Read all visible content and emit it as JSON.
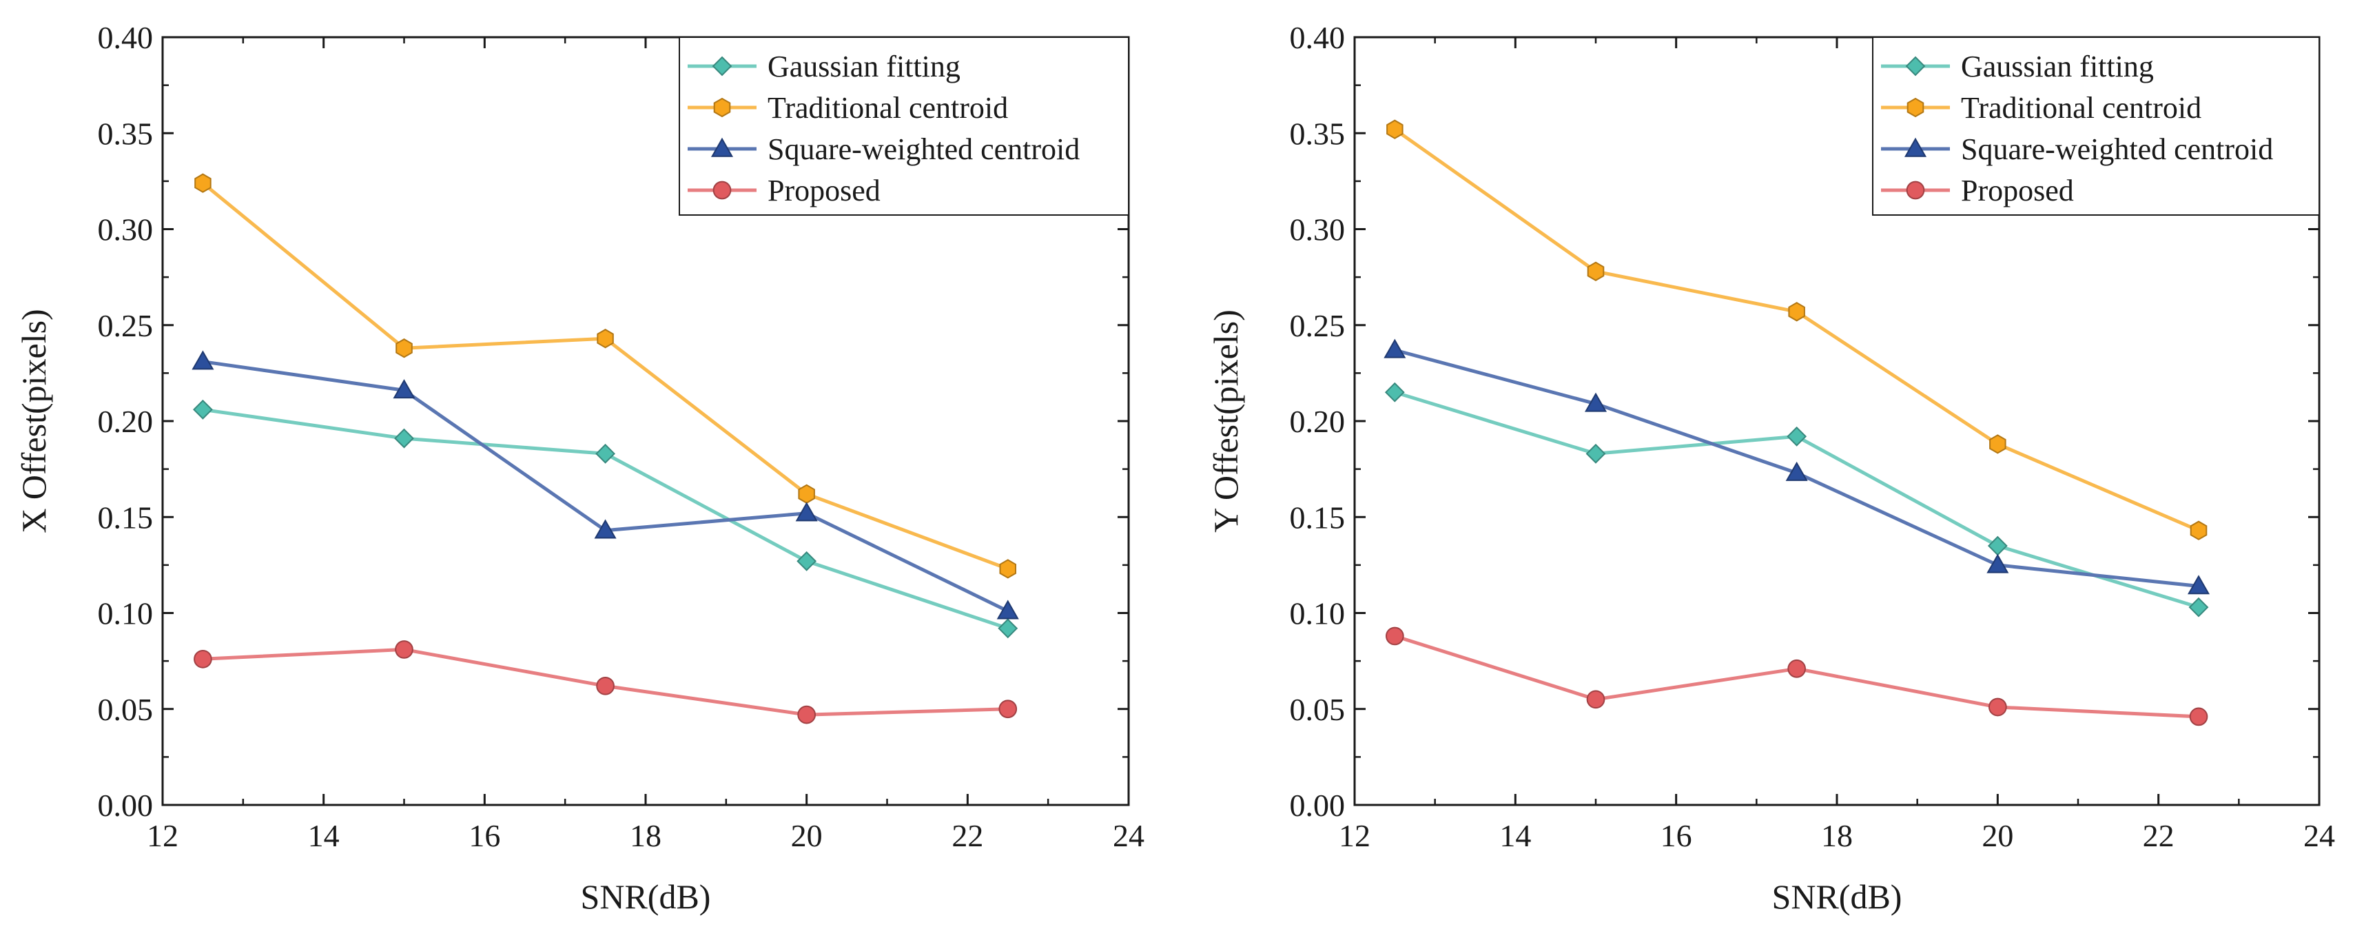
{
  "chart_data": [
    {
      "type": "line",
      "xlabel": "SNR(dB)",
      "ylabel": "X Offest(pixels)",
      "xlim": [
        12,
        24
      ],
      "ylim": [
        0,
        0.4
      ],
      "xticks": [
        "12",
        "14",
        "16",
        "18",
        "20",
        "22",
        "24"
      ],
      "yticks": [
        "0.00",
        "0.05",
        "0.10",
        "0.15",
        "0.20",
        "0.25",
        "0.30",
        "0.35",
        "0.40"
      ],
      "legend_position": "top-right",
      "grid": false,
      "x": [
        12.5,
        15,
        17.5,
        20,
        22.5
      ],
      "series": [
        {
          "name": "Gaussian fitting",
          "color": "#4dbdad",
          "marker": "diamond",
          "values": [
            0.206,
            0.191,
            0.183,
            0.127,
            0.092
          ]
        },
        {
          "name": "Traditional centroid",
          "color": "#f7a51c",
          "marker": "hexagon",
          "values": [
            0.324,
            0.238,
            0.243,
            0.162,
            0.123
          ]
        },
        {
          "name": "Square-weighted centroid",
          "color": "#2b4f9c",
          "marker": "triangle",
          "values": [
            0.231,
            0.216,
            0.143,
            0.152,
            0.101
          ]
        },
        {
          "name": "Proposed",
          "color": "#e05a5e",
          "marker": "circle",
          "values": [
            0.076,
            0.081,
            0.062,
            0.047,
            0.05
          ]
        }
      ]
    },
    {
      "type": "line",
      "xlabel": "SNR(dB)",
      "ylabel": "Y Offest(pixels)",
      "xlim": [
        12,
        24
      ],
      "ylim": [
        0,
        0.4
      ],
      "xticks": [
        "12",
        "14",
        "16",
        "18",
        "20",
        "22",
        "24"
      ],
      "yticks": [
        "0.00",
        "0.05",
        "0.10",
        "0.15",
        "0.20",
        "0.25",
        "0.30",
        "0.35",
        "0.40"
      ],
      "legend_position": "top-right",
      "grid": false,
      "x": [
        12.5,
        15,
        17.5,
        20,
        22.5
      ],
      "series": [
        {
          "name": "Gaussian fitting",
          "color": "#4dbdad",
          "marker": "diamond",
          "values": [
            0.215,
            0.183,
            0.192,
            0.135,
            0.103
          ]
        },
        {
          "name": "Traditional centroid",
          "color": "#f7a51c",
          "marker": "hexagon",
          "values": [
            0.352,
            0.278,
            0.257,
            0.188,
            0.143
          ]
        },
        {
          "name": "Square-weighted centroid",
          "color": "#2b4f9c",
          "marker": "triangle",
          "values": [
            0.237,
            0.209,
            0.173,
            0.125,
            0.114
          ]
        },
        {
          "name": "Proposed",
          "color": "#e05a5e",
          "marker": "circle",
          "values": [
            0.088,
            0.055,
            0.071,
            0.051,
            0.046
          ]
        }
      ]
    }
  ]
}
